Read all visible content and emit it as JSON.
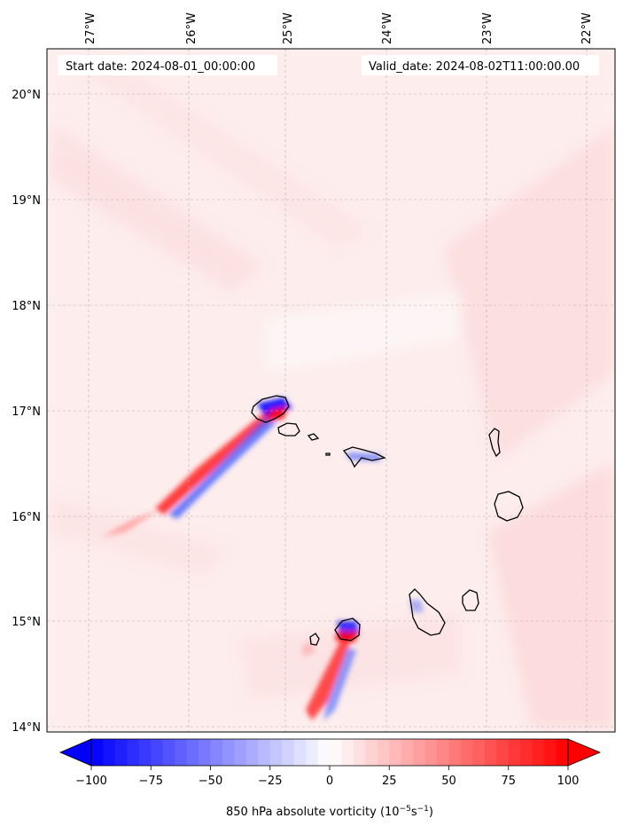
{
  "header": {
    "start_date": "Start date: 2024-08-01_00:00:00",
    "valid_date": "Valid_date: 2024-08-02T11:00:00.00"
  },
  "axes": {
    "lon_labels": [
      "27°W",
      "26°W",
      "25°W",
      "24°W",
      "23°W",
      "22°W"
    ],
    "lat_labels": [
      "20°N",
      "19°N",
      "18°N",
      "17°N",
      "16°N",
      "15°N",
      "14°N"
    ]
  },
  "colorbar": {
    "ticks": [
      "−100",
      "−75",
      "−50",
      "−25",
      "0",
      "25",
      "50",
      "75",
      "100"
    ],
    "label_main": "850 hPa absolute vorticity (10",
    "label_sup1": "−5",
    "label_mid": "s",
    "label_sup2": "−1",
    "label_end": ")",
    "min": -100,
    "max": 100,
    "colors": {
      "neg": "#0000ff",
      "zero": "#ffffff",
      "pos": "#ff0000"
    }
  },
  "map": {
    "extent_lon": [
      -27.4,
      -21.8
    ],
    "extent_lat": [
      13.95,
      20.45
    ],
    "background_tint": "#fde6e6",
    "islands": [
      "Santo Antão",
      "São Vicente",
      "Santa Luzia",
      "Branco",
      "Raso",
      "São Nicolau",
      "Sal",
      "Boa Vista",
      "Brava",
      "Fogo",
      "Santiago",
      "Maio"
    ]
  }
}
